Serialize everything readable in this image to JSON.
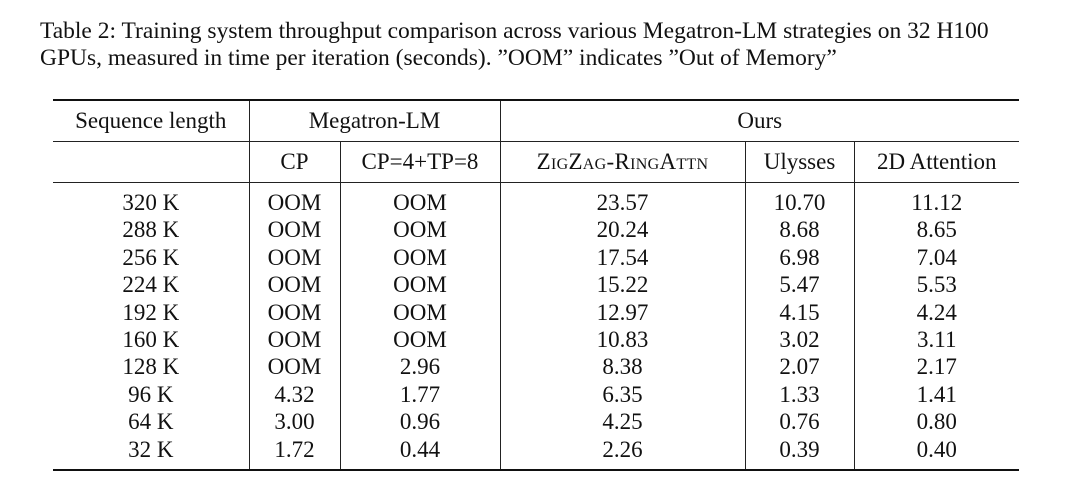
{
  "caption": {
    "line1": "Table 2: Training system throughput comparison across various Megatron-LM strategies on 32 H100",
    "line2": "GPUs, measured in time per iteration (seconds). ”OOM” indicates ”Out of Memory”"
  },
  "table": {
    "header_top": {
      "seq": "Sequence length",
      "megatron": "Megatron-LM",
      "ours": "Ours"
    },
    "header_sub": {
      "cp": "CP",
      "cptp": "CP=4+TP=8",
      "zigzag": "ZigZag-RingAttn",
      "ulysses": "Ulysses",
      "attn2d": "2D Attention"
    },
    "rows": [
      {
        "seq": "320 K",
        "cp": "OOM",
        "cptp": "OOM",
        "zigzag": "23.57",
        "ulysses": "10.70",
        "attn2d": "11.12"
      },
      {
        "seq": "288 K",
        "cp": "OOM",
        "cptp": "OOM",
        "zigzag": "20.24",
        "ulysses": "8.68",
        "attn2d": "8.65"
      },
      {
        "seq": "256 K",
        "cp": "OOM",
        "cptp": "OOM",
        "zigzag": "17.54",
        "ulysses": "6.98",
        "attn2d": "7.04"
      },
      {
        "seq": "224 K",
        "cp": "OOM",
        "cptp": "OOM",
        "zigzag": "15.22",
        "ulysses": "5.47",
        "attn2d": "5.53"
      },
      {
        "seq": "192 K",
        "cp": "OOM",
        "cptp": "OOM",
        "zigzag": "12.97",
        "ulysses": "4.15",
        "attn2d": "4.24"
      },
      {
        "seq": "160 K",
        "cp": "OOM",
        "cptp": "OOM",
        "zigzag": "10.83",
        "ulysses": "3.02",
        "attn2d": "3.11"
      },
      {
        "seq": "128 K",
        "cp": "OOM",
        "cptp": "2.96",
        "zigzag": "8.38",
        "ulysses": "2.07",
        "attn2d": "2.17"
      },
      {
        "seq": "96 K",
        "cp": "4.32",
        "cptp": "1.77",
        "zigzag": "6.35",
        "ulysses": "1.33",
        "attn2d": "1.41"
      },
      {
        "seq": "64 K",
        "cp": "3.00",
        "cptp": "0.96",
        "zigzag": "4.25",
        "ulysses": "0.76",
        "attn2d": "0.80"
      },
      {
        "seq": "32 K",
        "cp": "1.72",
        "cptp": "0.44",
        "zigzag": "2.26",
        "ulysses": "0.39",
        "attn2d": "0.40"
      }
    ]
  }
}
